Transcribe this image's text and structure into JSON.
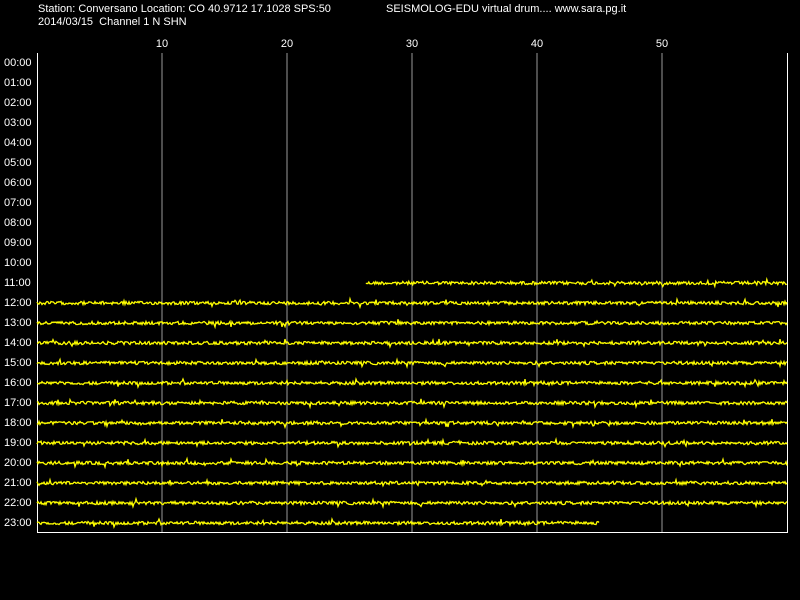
{
  "chart_data": {
    "type": "drum",
    "title": "Station: Conversano Location: CO 40.9712 17.1028 SPS:50",
    "subtitle": "SEISMOLOG-EDU virtual drum.... www.sara.pg.it",
    "caption": "2014/03/15  Channel 1 N SHN",
    "categories": [
      "00:00",
      "01:00",
      "02:00",
      "03:00",
      "04:00",
      "05:00",
      "06:00",
      "07:00",
      "08:00",
      "09:00",
      "10:00",
      "11:00",
      "12:00",
      "13:00",
      "14:00",
      "15:00",
      "16:00",
      "17:00",
      "18:00",
      "19:00",
      "20:00",
      "21:00",
      "22:00",
      "23:00"
    ],
    "xlim": [
      0,
      60
    ],
    "xticks": [
      10,
      20,
      30,
      40,
      50
    ],
    "grid": true,
    "color": "#ffff00",
    "trace_start": {
      "time": "11:00",
      "minute": 26.3
    },
    "trace_end": {
      "time": "23:00",
      "minute": 45
    }
  }
}
